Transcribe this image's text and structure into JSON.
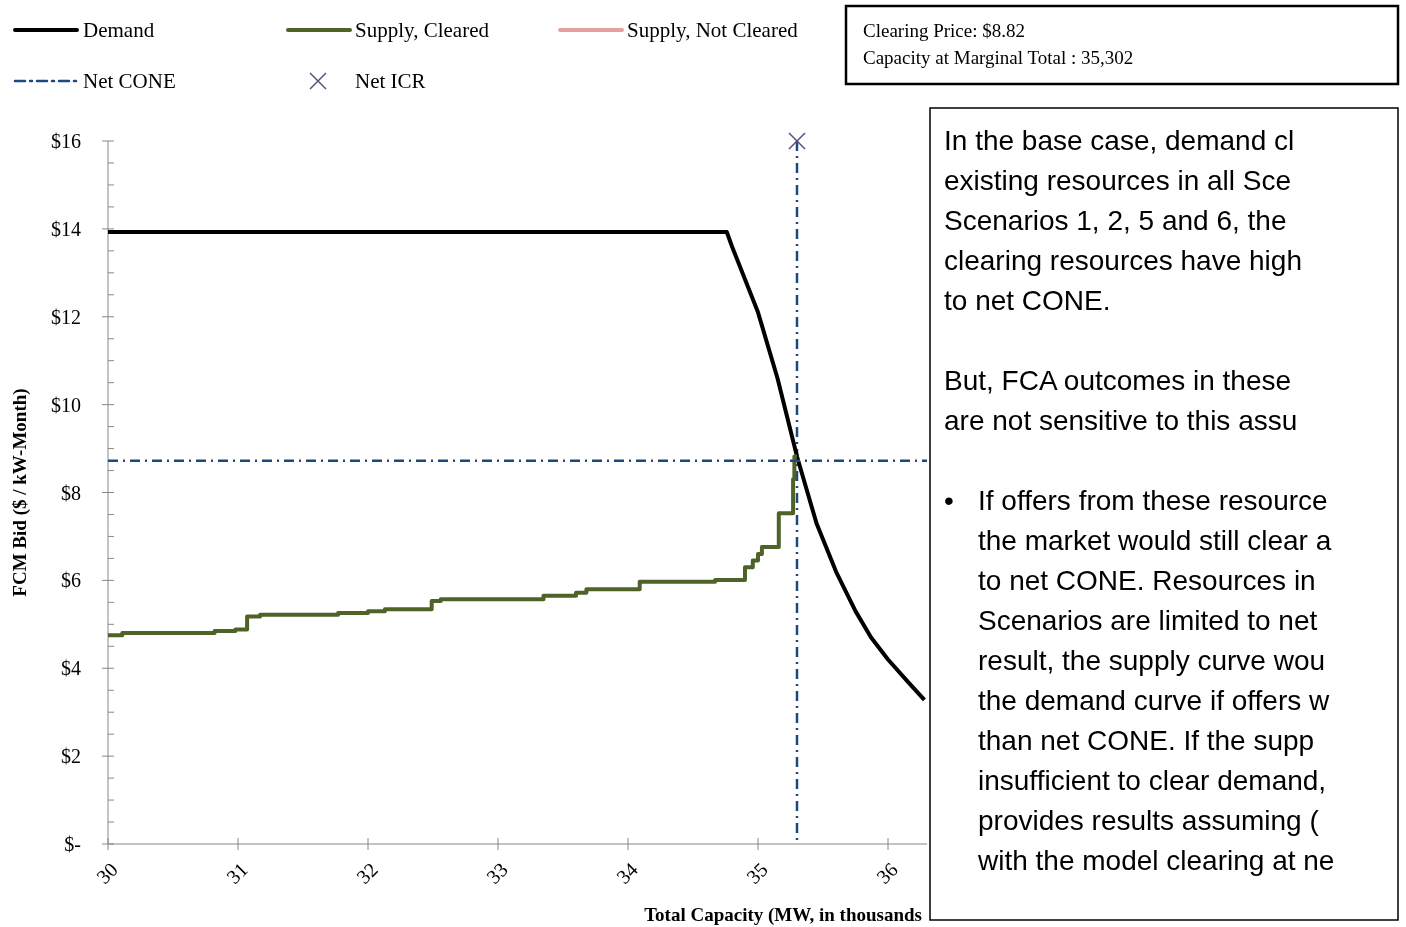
{
  "chart_data": {
    "type": "line",
    "xlabel": "Total  Capacity  (MW,  in thousands",
    "ylabel": "FCM  Bid ($ / kW-Month)",
    "xlim": [
      30,
      36.3
    ],
    "ylim": [
      0,
      16
    ],
    "xticks": [
      30,
      31,
      32,
      33,
      34,
      35,
      36
    ],
    "yticks": [
      {
        "value": 0,
        "label": "$-"
      },
      {
        "value": 0.5,
        "label": null
      },
      {
        "value": 1,
        "label": null
      },
      {
        "value": 1.5,
        "label": null
      },
      {
        "value": 2,
        "label": "$2"
      },
      {
        "value": 2.5,
        "label": null
      },
      {
        "value": 3,
        "label": null
      },
      {
        "value": 3.5,
        "label": null
      },
      {
        "value": 4,
        "label": "$4"
      },
      {
        "value": 4.5,
        "label": null
      },
      {
        "value": 5,
        "label": null
      },
      {
        "value": 5.5,
        "label": null
      },
      {
        "value": 6,
        "label": "$6"
      },
      {
        "value": 6.5,
        "label": null
      },
      {
        "value": 7,
        "label": null
      },
      {
        "value": 7.5,
        "label": null
      },
      {
        "value": 8,
        "label": "$8"
      },
      {
        "value": 8.5,
        "label": null
      },
      {
        "value": 9,
        "label": null
      },
      {
        "value": 9.5,
        "label": null
      },
      {
        "value": 10,
        "label": "$10"
      },
      {
        "value": 10.5,
        "label": null
      },
      {
        "value": 11,
        "label": null
      },
      {
        "value": 11.5,
        "label": null
      },
      {
        "value": 12,
        "label": "$12"
      },
      {
        "value": 12.5,
        "label": null
      },
      {
        "value": 13,
        "label": null
      },
      {
        "value": 13.5,
        "label": null
      },
      {
        "value": 14,
        "label": "$14"
      },
      {
        "value": 14.5,
        "label": null
      },
      {
        "value": 15,
        "label": null
      },
      {
        "value": 15.5,
        "label": null
      },
      {
        "value": 16,
        "label": "$16"
      }
    ],
    "grid": false,
    "legend": "top",
    "series": [
      {
        "name": "Demand",
        "color": "#000000",
        "x": [
          30,
          34.76,
          34.8,
          35.0,
          35.15,
          35.3,
          35.45,
          35.6,
          35.75,
          35.87,
          36.0,
          36.15,
          36.28
        ],
        "values": [
          13.93,
          13.93,
          13.6,
          12.1,
          10.6,
          8.82,
          7.3,
          6.2,
          5.3,
          4.7,
          4.2,
          3.7,
          3.28
        ]
      },
      {
        "name": "Supply, Cleared",
        "type": "step",
        "color": "#4f6228",
        "x": [
          30,
          30.11,
          30.82,
          30.98,
          31.07,
          31.17,
          31.77,
          32.0,
          32.13,
          32.49,
          32.56,
          33.35,
          33.6,
          33.68,
          34.09,
          34.67,
          34.9,
          34.96,
          35.0,
          35.03,
          35.16,
          35.27,
          35.28,
          35.3
        ],
        "values": [
          4.75,
          4.8,
          4.85,
          4.88,
          5.18,
          5.22,
          5.26,
          5.3,
          5.34,
          5.53,
          5.57,
          5.65,
          5.72,
          5.8,
          5.97,
          6.01,
          6.3,
          6.45,
          6.6,
          6.76,
          7.53,
          8.3,
          8.82,
          8.82
        ]
      },
      {
        "name": "Supply, Not Cleared",
        "type": "line",
        "color": "#e6a0a0"
      },
      {
        "name": "Net CONE",
        "type": "line",
        "line_style": "dashdot",
        "color": "#1f497d",
        "x": [
          30,
          36.3
        ],
        "values": [
          8.72,
          8.72
        ]
      },
      {
        "name": "Net ICR",
        "type": "scatter",
        "marker": "cross",
        "color": "#604a7b",
        "x": [
          35.3
        ],
        "values": [
          16
        ]
      }
    ],
    "ref_lines": [
      {
        "axis": "x",
        "value": 35.3,
        "color": "#1f497d",
        "line_style": "dashdot"
      }
    ],
    "annotations": [
      "Clearing  Price:  $8.82",
      "Capacity  at Marginal Total : 35,302",
      "In the base case, demand cl\nexisting resources in all Sce\nScenarios 1, 2, 5 and 6, the\nclearing resources have high\nto net CONE.",
      "But, FCA outcomes in these\nare not sensitive to this assu",
      "• If offers from these resource\nthe market would still clear a\nto net CONE. Resources in\nScenarios are limited to net\nresult, the supply curve wou\nthe demand curve if offers w\nthan net CONE.  If the supp\ninsufficient to clear demand,\nprovides results assuming (\nwith the model clearing at ne"
    ]
  }
}
